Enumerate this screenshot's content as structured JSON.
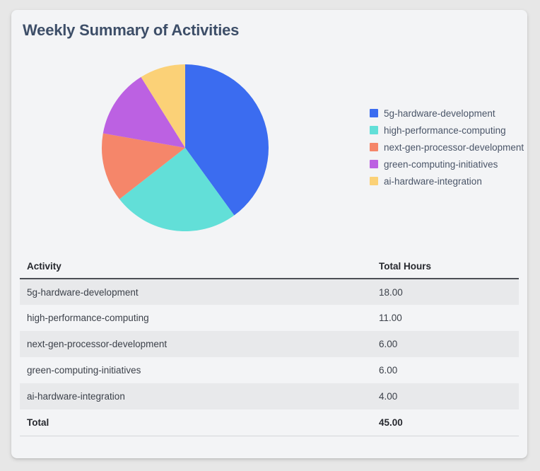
{
  "title": "Weekly Summary of Activities",
  "chart_data": {
    "type": "pie",
    "title": "Weekly Summary of Activities",
    "categories": [
      "5g-hardware-development",
      "high-performance-computing",
      "next-gen-processor-development",
      "green-computing-initiatives",
      "ai-hardware-integration"
    ],
    "values": [
      18,
      11,
      6,
      6,
      4
    ],
    "total": 45,
    "unit": "hours",
    "colors": [
      "#3b6cf0",
      "#62dfd8",
      "#f5866a",
      "#bc61e2",
      "#fbd177"
    ],
    "legend_position": "right",
    "start_angle_deg": 0,
    "direction": "clockwise"
  },
  "table": {
    "columns": [
      "Activity",
      "Total Hours"
    ],
    "rows": [
      {
        "activity": "5g-hardware-development",
        "hours": "18.00"
      },
      {
        "activity": "high-performance-computing",
        "hours": "11.00"
      },
      {
        "activity": "next-gen-processor-development",
        "hours": "6.00"
      },
      {
        "activity": "green-computing-initiatives",
        "hours": "6.00"
      },
      {
        "activity": "ai-hardware-integration",
        "hours": "4.00"
      }
    ],
    "total_label": "Total",
    "total_value": "45.00"
  }
}
